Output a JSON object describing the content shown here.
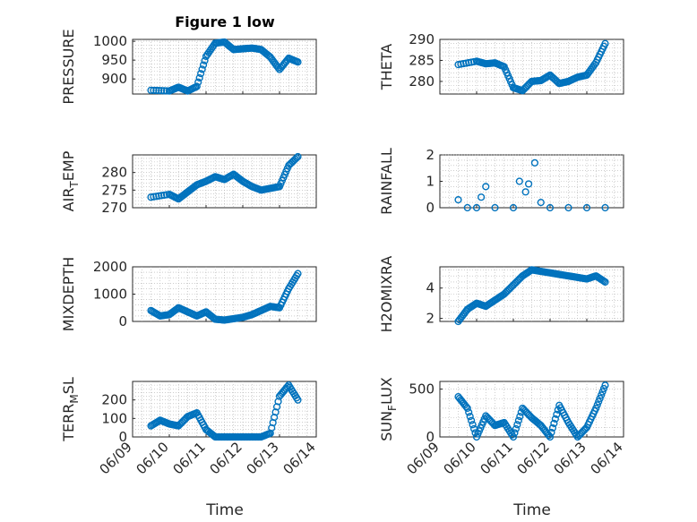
{
  "title": "Figure 1 low",
  "marker_color": "#0072BD",
  "x_tick_labels": [
    "06/09",
    "06/10",
    "06/11",
    "06/12",
    "06/13",
    "06/14"
  ],
  "xlabel": "Time",
  "chart_data": [
    {
      "type": "scatter",
      "xlabel": "",
      "ylabel": "PRESSURE",
      "ylabel_sub": null,
      "ylim": [
        860,
        1005
      ],
      "yticks": [
        900,
        950,
        1000
      ],
      "grid": true,
      "x": [
        "06/09 12:00",
        "06/10 00:00",
        "06/10 06:00",
        "06/10 12:00",
        "06/10 18:00",
        "06/11 00:00",
        "06/11 06:00",
        "06/11 12:00",
        "06/11 18:00",
        "06/12 00:00",
        "06/12 06:00",
        "06/12 12:00",
        "06/12 18:00",
        "06/13 00:00",
        "06/13 06:00",
        "06/13 12:00"
      ],
      "y": [
        870,
        868,
        878,
        868,
        880,
        960,
        995,
        998,
        978,
        980,
        982,
        978,
        958,
        925,
        955,
        945
      ]
    },
    {
      "type": "scatter",
      "xlabel": "",
      "ylabel": "THETA",
      "ylabel_sub": null,
      "ylim": [
        277,
        290
      ],
      "yticks": [
        280,
        285,
        290
      ],
      "grid": true,
      "x": [
        "06/09 12:00",
        "06/10 00:00",
        "06/10 06:00",
        "06/10 12:00",
        "06/10 18:00",
        "06/11 00:00",
        "06/11 06:00",
        "06/11 12:00",
        "06/11 18:00",
        "06/12 00:00",
        "06/12 06:00",
        "06/12 12:00",
        "06/12 18:00",
        "06/13 00:00",
        "06/13 06:00",
        "06/13 12:00"
      ],
      "y": [
        284,
        284.8,
        284.2,
        284.4,
        283.5,
        278.5,
        277.8,
        280,
        280.2,
        281.5,
        279.5,
        280,
        281,
        281.5,
        284.5,
        289
      ]
    },
    {
      "type": "scatter",
      "xlabel": "",
      "ylabel": "AIR",
      "ylabel_sub": "T",
      "ylabel_suffix": "EMP",
      "ylim": [
        270,
        285
      ],
      "yticks": [
        270,
        275,
        280
      ],
      "grid": true,
      "x": [
        "06/09 12:00",
        "06/10 00:00",
        "06/10 06:00",
        "06/10 12:00",
        "06/10 18:00",
        "06/11 00:00",
        "06/11 06:00",
        "06/11 12:00",
        "06/11 18:00",
        "06/12 00:00",
        "06/12 06:00",
        "06/12 12:00",
        "06/12 18:00",
        "06/13 00:00",
        "06/13 06:00",
        "06/13 12:00"
      ],
      "y": [
        273,
        273.8,
        272.5,
        274.5,
        276.5,
        277.5,
        278.8,
        278,
        279.5,
        277.5,
        276,
        275,
        275.5,
        276,
        282,
        284.5
      ]
    },
    {
      "type": "scatter",
      "xlabel": "",
      "ylabel": "RAINFALL",
      "ylabel_sub": null,
      "ylim": [
        0,
        2
      ],
      "yticks": [
        0,
        1,
        2
      ],
      "grid": true,
      "x": [
        "06/09 12:00",
        "06/09 18:00",
        "06/10 00:00",
        "06/10 03:00",
        "06/10 06:00",
        "06/10 12:00",
        "06/11 00:00",
        "06/11 04:00",
        "06/11 08:00",
        "06/11 10:00",
        "06/11 14:00",
        "06/11 18:00",
        "06/12 00:00",
        "06/12 12:00",
        "06/13 00:00",
        "06/13 12:00"
      ],
      "y": [
        0.3,
        0,
        0,
        0.4,
        0.8,
        0,
        0,
        1,
        0.6,
        0.9,
        1.7,
        0.2,
        0,
        0,
        0,
        0
      ]
    },
    {
      "type": "scatter",
      "xlabel": "",
      "ylabel": "MIXDEPTH",
      "ylabel_sub": null,
      "ylim": [
        0,
        2000
      ],
      "yticks": [
        0,
        1000,
        2000
      ],
      "grid": true,
      "x": [
        "06/09 12:00",
        "06/09 18:00",
        "06/10 00:00",
        "06/10 06:00",
        "06/10 12:00",
        "06/10 18:00",
        "06/11 00:00",
        "06/11 06:00",
        "06/11 12:00",
        "06/11 18:00",
        "06/12 00:00",
        "06/12 06:00",
        "06/12 12:00",
        "06/12 18:00",
        "06/13 00:00",
        "06/13 06:00",
        "06/13 12:00"
      ],
      "y": [
        400,
        200,
        250,
        500,
        350,
        200,
        350,
        80,
        50,
        100,
        150,
        250,
        400,
        550,
        500,
        1200,
        1750
      ]
    },
    {
      "type": "scatter",
      "xlabel": "",
      "ylabel": "H2OMIXRA",
      "ylabel_sub": null,
      "ylim": [
        1.8,
        5.4
      ],
      "yticks": [
        2,
        4
      ],
      "grid": true,
      "x": [
        "06/09 12:00",
        "06/09 18:00",
        "06/10 00:00",
        "06/10 06:00",
        "06/10 12:00",
        "06/10 18:00",
        "06/11 00:00",
        "06/11 06:00",
        "06/11 12:00",
        "06/11 18:00",
        "06/12 00:00",
        "06/12 06:00",
        "06/12 12:00",
        "06/12 18:00",
        "06/13 00:00",
        "06/13 06:00",
        "06/13 12:00"
      ],
      "y": [
        1.8,
        2.6,
        3.0,
        2.8,
        3.2,
        3.6,
        4.2,
        4.8,
        5.2,
        5.1,
        5.0,
        4.9,
        4.8,
        4.7,
        4.6,
        4.8,
        4.4
      ]
    },
    {
      "type": "scatter",
      "xlabel": "",
      "ylabel": "TERR",
      "ylabel_sub": "M",
      "ylabel_suffix": "SL",
      "ylim": [
        0,
        300
      ],
      "yticks": [
        0,
        100,
        200
      ],
      "grid": true,
      "x": [
        "06/09 12:00",
        "06/09 18:00",
        "06/10 00:00",
        "06/10 06:00",
        "06/10 12:00",
        "06/10 18:00",
        "06/11 00:00",
        "06/11 06:00",
        "06/11 12:00",
        "06/11 18:00",
        "06/12 00:00",
        "06/12 06:00",
        "06/12 12:00",
        "06/12 18:00",
        "06/13 00:00",
        "06/13 06:00",
        "06/13 12:00"
      ],
      "y": [
        60,
        90,
        70,
        60,
        110,
        130,
        40,
        0,
        0,
        0,
        0,
        0,
        0,
        20,
        220,
        280,
        200
      ]
    },
    {
      "type": "scatter",
      "xlabel": "",
      "ylabel": "SUN",
      "ylabel_sub": "F",
      "ylabel_suffix": "LUX",
      "ylim": [
        0,
        580
      ],
      "yticks": [
        0,
        500
      ],
      "grid": true,
      "x": [
        "06/09 12:00",
        "06/09 18:00",
        "06/10 00:00",
        "06/10 06:00",
        "06/10 12:00",
        "06/10 18:00",
        "06/11 00:00",
        "06/11 06:00",
        "06/11 12:00",
        "06/11 18:00",
        "06/12 00:00",
        "06/12 06:00",
        "06/12 12:00",
        "06/12 18:00",
        "06/13 00:00",
        "06/13 06:00",
        "06/13 12:00"
      ],
      "y": [
        420,
        300,
        0,
        220,
        120,
        150,
        0,
        300,
        200,
        120,
        0,
        330,
        150,
        0,
        100,
        300,
        540
      ]
    }
  ]
}
